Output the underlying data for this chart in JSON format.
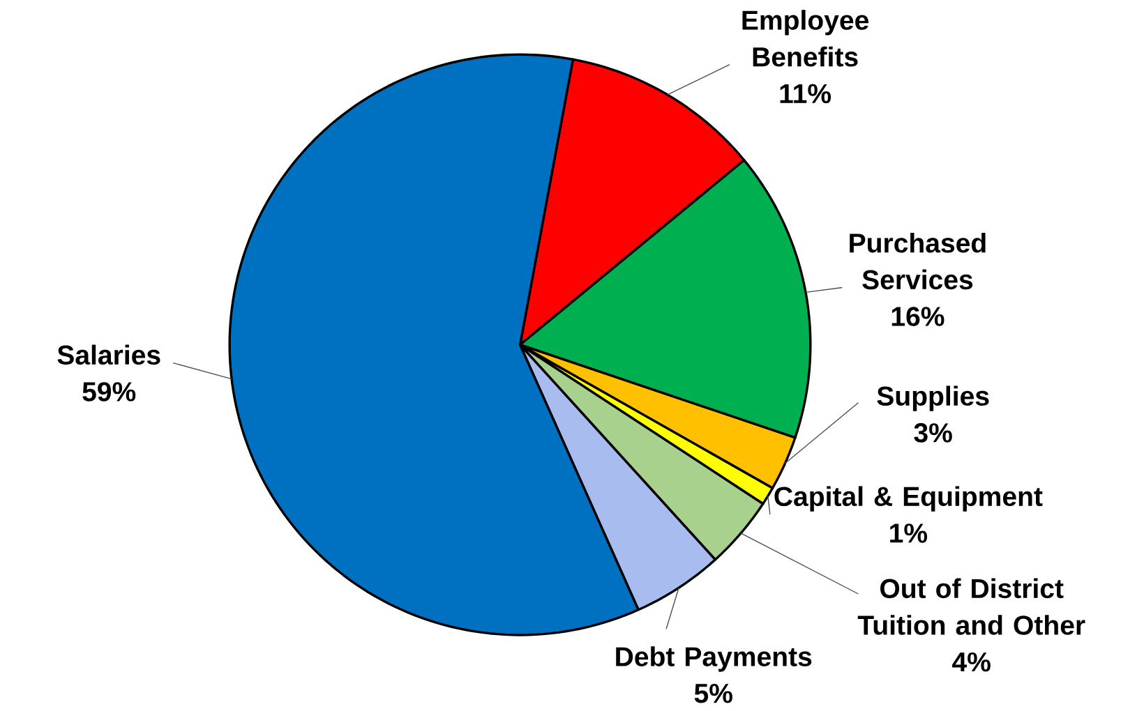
{
  "chart_data": {
    "type": "pie",
    "categories": [
      "Employee Benefits",
      "Purchased Services",
      "Supplies",
      "Capital & Equipment",
      "Out of District Tuition and Other",
      "Debt Payments",
      "Salaries"
    ],
    "values": [
      11,
      16,
      3,
      1,
      4,
      5,
      59
    ],
    "value_labels": [
      "11%",
      "16%",
      "3%",
      "1%",
      "4%",
      "5%",
      "59%"
    ],
    "colors": [
      "#ff0000",
      "#00b050",
      "#ffc000",
      "#ffff00",
      "#a9d18e",
      "#a9bcf0",
      "#0070c0"
    ]
  }
}
